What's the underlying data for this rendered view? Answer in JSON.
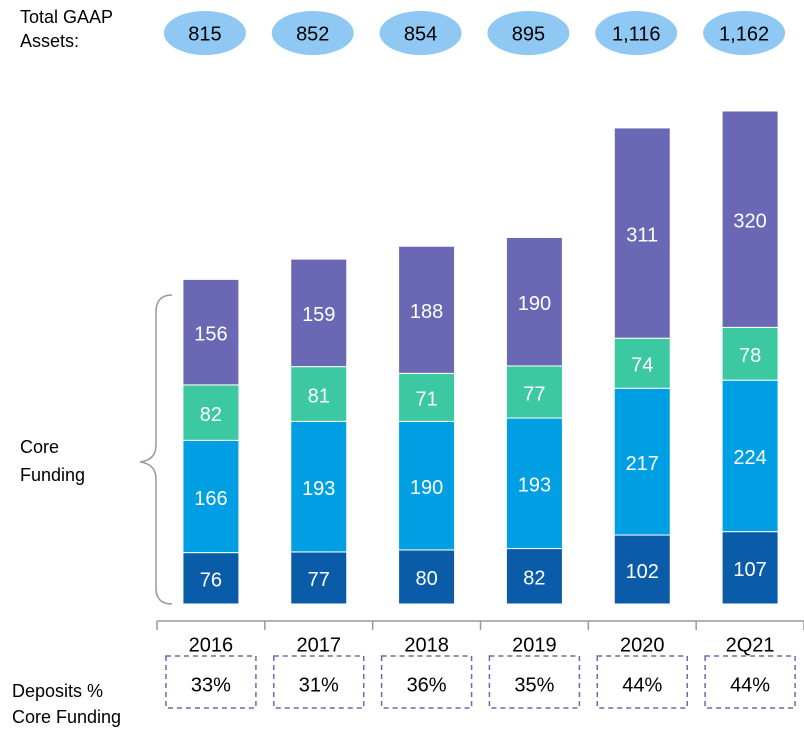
{
  "total_assets": {
    "label": [
      "Total GAAP",
      "Assets:"
    ],
    "values": [
      "815",
      "852",
      "854",
      "895",
      "1,116",
      "1,162"
    ]
  },
  "chart_data": {
    "type": "stacked_bar",
    "categories": [
      "2016",
      "2017",
      "2018",
      "2019",
      "2020",
      "2Q21"
    ],
    "series": [
      {
        "color": "#0a5ca8",
        "values": [
          76,
          77,
          80,
          82,
          102,
          107
        ]
      },
      {
        "color": "#009fe3",
        "values": [
          166,
          193,
          190,
          193,
          217,
          224
        ]
      },
      {
        "color": "#3cc8a0",
        "values": [
          82,
          81,
          71,
          77,
          74,
          78
        ]
      },
      {
        "color": "#6a68b4",
        "values": [
          156,
          159,
          188,
          190,
          311,
          320
        ]
      }
    ],
    "bracket_label": [
      "Core",
      "Funding"
    ]
  },
  "deposits": {
    "label": [
      "Deposits %",
      "Core Funding"
    ],
    "values": [
      "33%",
      "31%",
      "36%",
      "35%",
      "44%",
      "44%"
    ]
  }
}
